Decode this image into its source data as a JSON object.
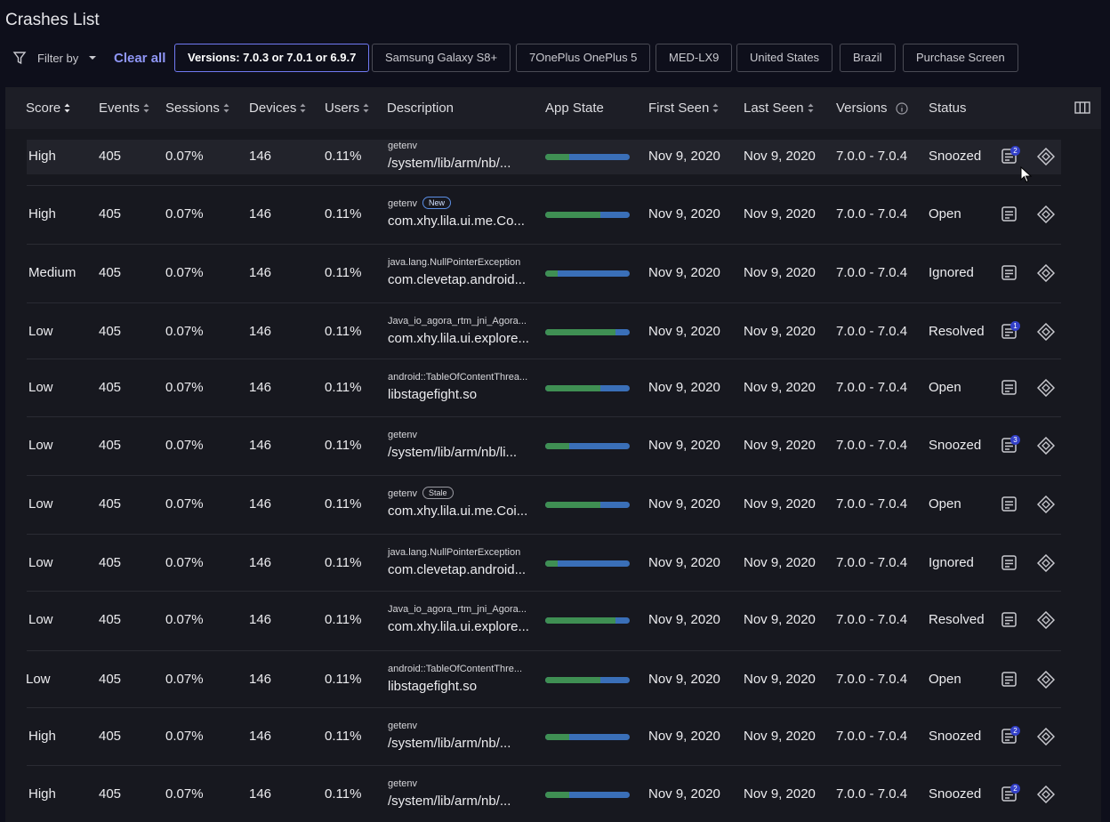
{
  "header": {
    "title": "Crashes List"
  },
  "filters": {
    "filter_by": "Filter by",
    "clear_all": "Clear all",
    "chips": [
      "Versions: 7.0.3 or 7.0.1 or 6.9.7",
      "Samsung Galaxy S8+",
      "7OnePlus OnePlus 5",
      "MED-LX9",
      "United States",
      "Brazil",
      "Purchase Screen"
    ]
  },
  "table": {
    "columns": [
      "Score",
      "Events",
      "Sessions",
      "Devices",
      "Users",
      "Description",
      "App State",
      "First Seen",
      "Last Seen",
      "Versions",
      "Status"
    ],
    "rows": [
      {
        "score": "High",
        "events": 405,
        "sessions": "0.07%",
        "devices": 146,
        "users": "0.11%",
        "desc_top": "getenv",
        "desc_main": "/system/lib/arm/nb/...",
        "app_state": 28,
        "first_seen": "Nov 9, 2020",
        "last_seen": "Nov 9, 2020",
        "versions": "7.0.0 - 7.0.4",
        "status": "Snoozed",
        "notes": 2
      },
      {
        "score": "High",
        "events": 405,
        "sessions": "0.07%",
        "devices": 146,
        "users": "0.11%",
        "desc_top": "getenv",
        "badge": "New",
        "desc_main": "com.xhy.lila.ui.me.Co...",
        "app_state": 65,
        "first_seen": "Nov 9, 2020",
        "last_seen": "Nov 9, 2020",
        "versions": "7.0.0 - 7.0.4",
        "status": "Open"
      },
      {
        "score": "Medium",
        "events": 405,
        "sessions": "0.07%",
        "devices": 146,
        "users": "0.11%",
        "desc_top": "java.lang.NullPointerException",
        "desc_main": "com.clevetap.android...",
        "app_state": 15,
        "first_seen": "Nov 9, 2020",
        "last_seen": "Nov 9, 2020",
        "versions": "7.0.0 - 7.0.4",
        "status": "Ignored"
      },
      {
        "score": "Low",
        "events": 405,
        "sessions": "0.07%",
        "devices": 146,
        "users": "0.11%",
        "desc_top": "Java_io_agora_rtm_jni_Agora...",
        "desc_main": "com.xhy.lila.ui.explore...",
        "app_state": 83,
        "first_seen": "Nov 9, 2020",
        "last_seen": "Nov 9, 2020",
        "versions": "7.0.0 - 7.0.4",
        "status": "Resolved",
        "notes": 1
      },
      {
        "score": "Low",
        "events": 405,
        "sessions": "0.07%",
        "devices": 146,
        "users": "0.11%",
        "desc_top": "android::TableOfContentThrea...",
        "desc_main": "libstagefight.so",
        "app_state": 65,
        "first_seen": "Nov 9, 2020",
        "last_seen": "Nov 9, 2020",
        "versions": "7.0.0 - 7.0.4",
        "status": "Open"
      },
      {
        "score": "Low",
        "events": 405,
        "sessions": "0.07%",
        "devices": 146,
        "users": "0.11%",
        "desc_top": "getenv",
        "desc_main": "/system/lib/arm/nb/li...",
        "app_state": 28,
        "first_seen": "Nov 9, 2020",
        "last_seen": "Nov 9, 2020",
        "versions": "7.0.0 - 7.0.4",
        "status": "Snoozed",
        "notes": 3
      },
      {
        "score": "Low",
        "events": 405,
        "sessions": "0.07%",
        "devices": 146,
        "users": "0.11%",
        "desc_top": "getenv",
        "badge": "Stale",
        "desc_main": "com.xhy.lila.ui.me.Coi...",
        "app_state": 65,
        "first_seen": "Nov 9, 2020",
        "last_seen": "Nov 9, 2020",
        "versions": "7.0.0 - 7.0.4",
        "status": "Open"
      },
      {
        "score": "Low",
        "events": 405,
        "sessions": "0.07%",
        "devices": 146,
        "users": "0.11%",
        "desc_top": "java.lang.NullPointerException",
        "desc_main": "com.clevetap.android...",
        "app_state": 15,
        "first_seen": "Nov 9, 2020",
        "last_seen": "Nov 9, 2020",
        "versions": "7.0.0 - 7.0.4",
        "status": "Ignored"
      },
      {
        "score": "Low",
        "events": 405,
        "sessions": "0.07%",
        "devices": 146,
        "users": "0.11%",
        "desc_top": "Java_io_agora_rtm_jni_Agora...",
        "desc_main": "com.xhy.lila.ui.explore...",
        "app_state": 83,
        "first_seen": "Nov 9, 2020",
        "last_seen": "Nov 9, 2020",
        "versions": "7.0.0 - 7.0.4",
        "status": "Resolved"
      },
      {
        "score": "Low",
        "events": 405,
        "sessions": "0.07%",
        "devices": 146,
        "users": "0.11%",
        "desc_top": "android::TableOfContentThre...",
        "desc_main": "libstagefight.so",
        "app_state": 65,
        "first_seen": "Nov 9, 2020",
        "last_seen": "Nov 9, 2020",
        "versions": "7.0.0 - 7.0.4",
        "status": "Open"
      },
      {
        "score": "High",
        "events": 405,
        "sessions": "0.07%",
        "devices": 146,
        "users": "0.11%",
        "desc_top": "getenv",
        "desc_main": "/system/lib/arm/nb/...",
        "app_state": 28,
        "first_seen": "Nov 9, 2020",
        "last_seen": "Nov 9, 2020",
        "versions": "7.0.0 - 7.0.4",
        "status": "Snoozed",
        "notes": 2
      },
      {
        "score": "High",
        "events": 405,
        "sessions": "0.07%",
        "devices": 146,
        "users": "0.11%",
        "desc_top": "getenv",
        "desc_main": "/system/lib/arm/nb/...",
        "app_state": 28,
        "first_seen": "Nov 9, 2020",
        "last_seen": "Nov 9, 2020",
        "versions": "7.0.0 - 7.0.4",
        "status": "Snoozed",
        "notes": 2
      }
    ]
  }
}
